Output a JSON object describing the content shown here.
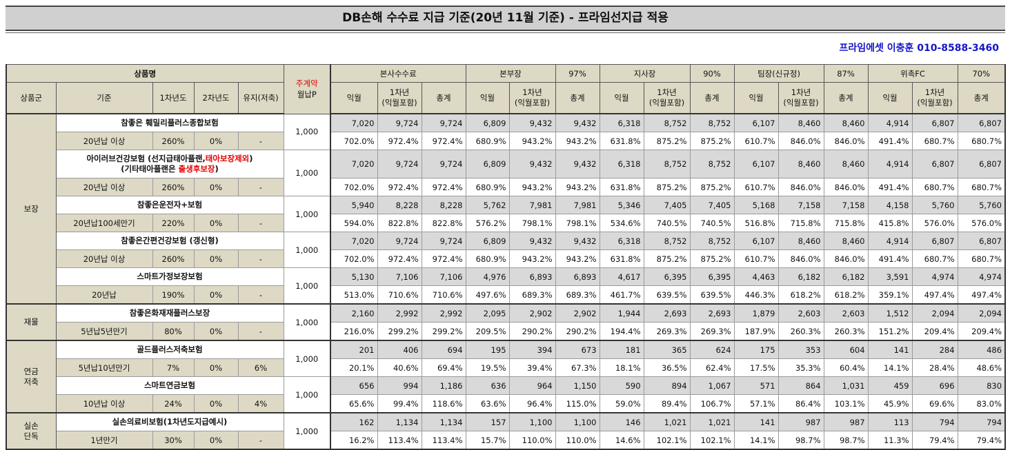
{
  "title": "DB손해 수수료 지급 기준(20년 11월 기준) - 프라임선지급 적용",
  "contact": "프라임에셋 이충훈 010-8588-3460",
  "header": {
    "product_name": "상품명",
    "monthly_label_line1": "주계약",
    "monthly_label_line2": "월납P",
    "product_group": "상품군",
    "criteria": "기준",
    "year1": "1차년도",
    "year2": "2차년도",
    "maintain": "유지(저축)",
    "blocks": [
      {
        "name": "본사수수료",
        "rate": ""
      },
      {
        "name": "본부장",
        "rate": "97%"
      },
      {
        "name": "지사장",
        "rate": "90%"
      },
      {
        "name": "팀장(신규정)",
        "rate": "87%"
      },
      {
        "name": "위촉FC",
        "rate": "70%"
      }
    ],
    "sub_next": "익월",
    "sub_first_year": "1차년\n(익월포함)",
    "sub_total": "총계"
  },
  "groups": [
    {
      "name": "보장"
    },
    {
      "name": "재물"
    },
    {
      "name": "연금\n저축"
    },
    {
      "name": "실손\n단독"
    }
  ],
  "products": [
    {
      "name": "참좋은 훼밀리플러스종합보험",
      "criteria": "20년납 이상",
      "y1": "260%",
      "y2": "0%",
      "maintain": "-",
      "monthly": "1,000",
      "amounts": [
        "7,020",
        "9,724",
        "9,724",
        "6,809",
        "9,432",
        "9,432",
        "6,318",
        "8,752",
        "8,752",
        "6,107",
        "8,460",
        "8,460",
        "4,914",
        "6,807",
        "6,807"
      ],
      "rates": [
        "702.0%",
        "972.4%",
        "972.4%",
        "680.9%",
        "943.2%",
        "943.2%",
        "631.8%",
        "875.2%",
        "875.2%",
        "610.7%",
        "846.0%",
        "846.0%",
        "491.4%",
        "680.7%",
        "680.7%"
      ]
    },
    {
      "name_line1_a": "아이러브건강보험 (선지급태아플랜,",
      "name_line1_red": "태아보장제외",
      "name_line1_b": ")",
      "name_line2_a": "(기타태아플랜은 ",
      "name_line2_red": "출생후보장",
      "name_line2_b": ")",
      "criteria": "20년납 이상",
      "y1": "260%",
      "y2": "0%",
      "maintain": "-",
      "monthly": "1,000",
      "amounts": [
        "7,020",
        "9,724",
        "9,724",
        "6,809",
        "9,432",
        "9,432",
        "6,318",
        "8,752",
        "8,752",
        "6,107",
        "8,460",
        "8,460",
        "4,914",
        "6,807",
        "6,807"
      ],
      "rates": [
        "702.0%",
        "972.4%",
        "972.4%",
        "680.9%",
        "943.2%",
        "943.2%",
        "631.8%",
        "875.2%",
        "875.2%",
        "610.7%",
        "846.0%",
        "846.0%",
        "491.4%",
        "680.7%",
        "680.7%"
      ]
    },
    {
      "name": "참좋은운전자+보험",
      "criteria": "20년납100세만기",
      "y1": "220%",
      "y2": "0%",
      "maintain": "-",
      "monthly": "1,000",
      "amounts": [
        "5,940",
        "8,228",
        "8,228",
        "5,762",
        "7,981",
        "7,981",
        "5,346",
        "7,405",
        "7,405",
        "5,168",
        "7,158",
        "7,158",
        "4,158",
        "5,760",
        "5,760"
      ],
      "rates": [
        "594.0%",
        "822.8%",
        "822.8%",
        "576.2%",
        "798.1%",
        "798.1%",
        "534.6%",
        "740.5%",
        "740.5%",
        "516.8%",
        "715.8%",
        "715.8%",
        "415.8%",
        "576.0%",
        "576.0%"
      ]
    },
    {
      "name": "참좋은간편건강보험 (갱신형)",
      "criteria": "20년납 이상",
      "y1": "260%",
      "y2": "0%",
      "maintain": "-",
      "monthly": "1,000",
      "amounts": [
        "7,020",
        "9,724",
        "9,724",
        "6,809",
        "9,432",
        "9,432",
        "6,318",
        "8,752",
        "8,752",
        "6,107",
        "8,460",
        "8,460",
        "4,914",
        "6,807",
        "6,807"
      ],
      "rates": [
        "702.0%",
        "972.4%",
        "972.4%",
        "680.9%",
        "943.2%",
        "943.2%",
        "631.8%",
        "875.2%",
        "875.2%",
        "610.7%",
        "846.0%",
        "846.0%",
        "491.4%",
        "680.7%",
        "680.7%"
      ]
    },
    {
      "name": "스마트가정보장보험",
      "criteria": "20년납",
      "y1": "190%",
      "y2": "0%",
      "maintain": "-",
      "monthly": "1,000",
      "amounts": [
        "5,130",
        "7,106",
        "7,106",
        "4,976",
        "6,893",
        "6,893",
        "4,617",
        "6,395",
        "6,395",
        "4,463",
        "6,182",
        "6,182",
        "3,591",
        "4,974",
        "4,974"
      ],
      "rates": [
        "513.0%",
        "710.6%",
        "710.6%",
        "497.6%",
        "689.3%",
        "689.3%",
        "461.7%",
        "639.5%",
        "639.5%",
        "446.3%",
        "618.2%",
        "618.2%",
        "359.1%",
        "497.4%",
        "497.4%"
      ]
    },
    {
      "name": "참좋은화재재플러스보장",
      "criteria": "5년납5년만기",
      "y1": "80%",
      "y2": "0%",
      "maintain": "-",
      "monthly": "1,000",
      "amounts": [
        "2,160",
        "2,992",
        "2,992",
        "2,095",
        "2,902",
        "2,902",
        "1,944",
        "2,693",
        "2,693",
        "1,879",
        "2,603",
        "2,603",
        "1,512",
        "2,094",
        "2,094"
      ],
      "rates": [
        "216.0%",
        "299.2%",
        "299.2%",
        "209.5%",
        "290.2%",
        "290.2%",
        "194.4%",
        "269.3%",
        "269.3%",
        "187.9%",
        "260.3%",
        "260.3%",
        "151.2%",
        "209.4%",
        "209.4%"
      ]
    },
    {
      "name": "골드플러스저축보험",
      "criteria": "5년납10년만기",
      "y1": "7%",
      "y2": "0%",
      "maintain": "6%",
      "monthly": "1,000",
      "amounts": [
        "201",
        "406",
        "694",
        "195",
        "394",
        "673",
        "181",
        "365",
        "624",
        "175",
        "353",
        "604",
        "141",
        "284",
        "486"
      ],
      "rates": [
        "20.1%",
        "40.6%",
        "69.4%",
        "19.5%",
        "39.4%",
        "67.3%",
        "18.1%",
        "36.5%",
        "62.4%",
        "17.5%",
        "35.3%",
        "60.4%",
        "14.1%",
        "28.4%",
        "48.6%"
      ]
    },
    {
      "name": "스마트연금보험",
      "criteria": "10년납 이상",
      "y1": "24%",
      "y2": "0%",
      "maintain": "4%",
      "monthly": "1,000",
      "amounts": [
        "656",
        "994",
        "1,186",
        "636",
        "964",
        "1,150",
        "590",
        "894",
        "1,067",
        "571",
        "864",
        "1,031",
        "459",
        "696",
        "830"
      ],
      "rates": [
        "65.6%",
        "99.4%",
        "118.6%",
        "63.6%",
        "96.4%",
        "115.0%",
        "59.0%",
        "89.4%",
        "106.7%",
        "57.1%",
        "86.4%",
        "103.1%",
        "45.9%",
        "69.6%",
        "83.0%"
      ]
    },
    {
      "name": "실손의료비보험(1차년도지급예시)",
      "criteria": "1년만기",
      "y1": "30%",
      "y2": "0%",
      "maintain": "-",
      "monthly": "1,000",
      "amounts": [
        "162",
        "1,134",
        "1,134",
        "157",
        "1,100",
        "1,100",
        "146",
        "1,021",
        "1,021",
        "141",
        "987",
        "987",
        "113",
        "794",
        "794"
      ],
      "rates": [
        "16.2%",
        "113.4%",
        "113.4%",
        "15.7%",
        "110.0%",
        "110.0%",
        "14.6%",
        "102.1%",
        "102.1%",
        "14.1%",
        "98.7%",
        "98.7%",
        "11.3%",
        "79.4%",
        "79.4%"
      ]
    }
  ]
}
